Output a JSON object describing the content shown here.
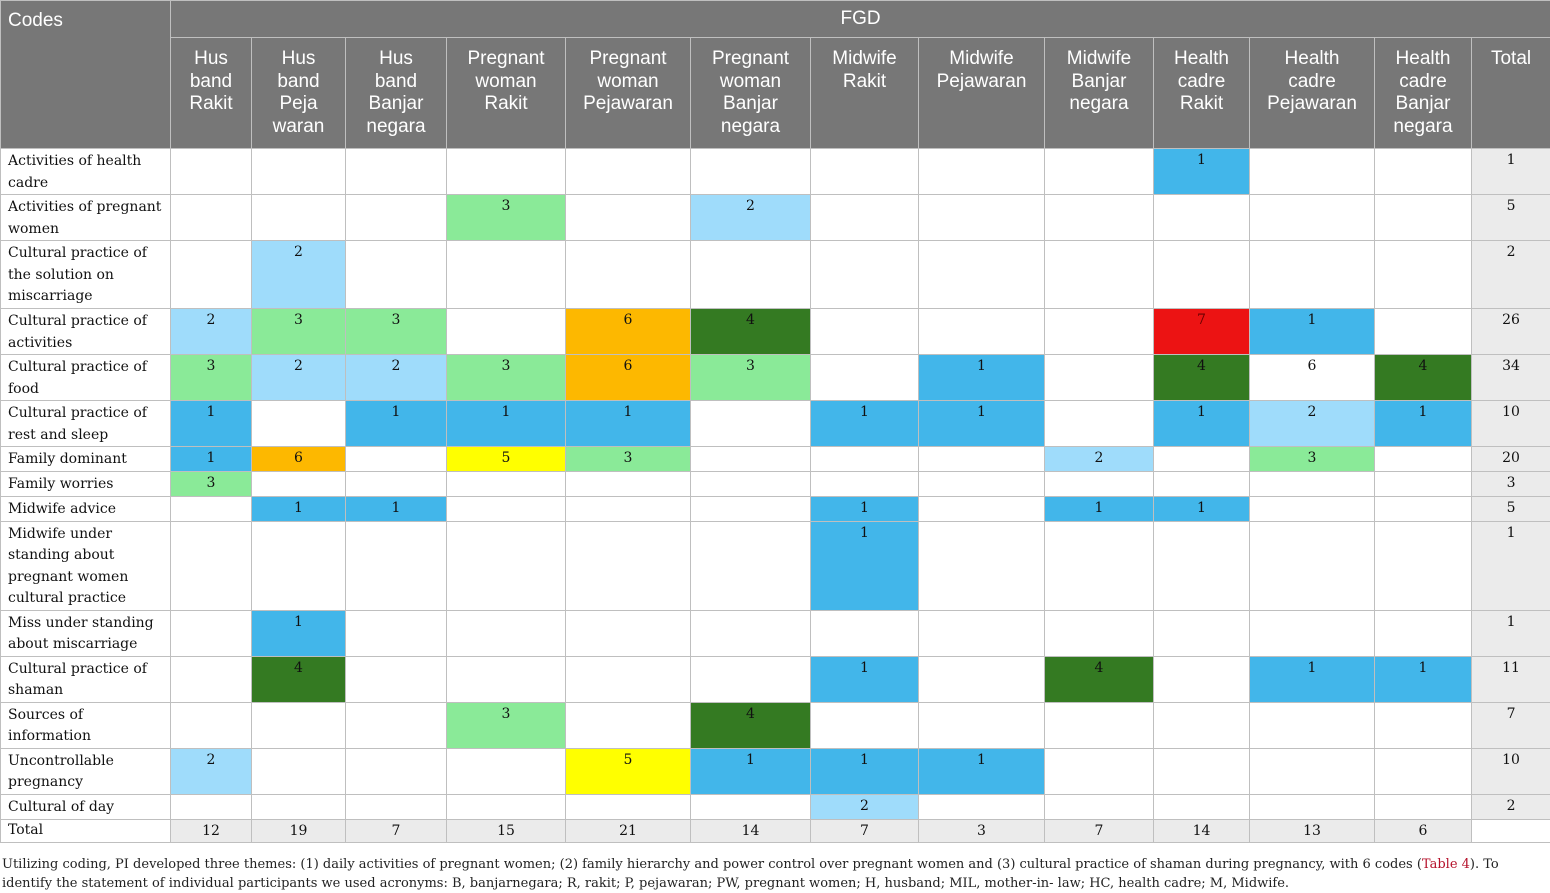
{
  "table": {
    "codes_header": "Codes",
    "group_header": "FGD",
    "columns": [
      "Hus\nband\nRakit",
      "Hus\nband\nPeja\nwaran",
      "Hus\nband\nBanjar\nnegara",
      "Pregnant\nwoman\nRakit",
      "Pregnant\nwoman\nPejawaran",
      "Pregnant\nwoman\nBanjar\nnegara",
      "Midwife\nRakit",
      "Midwife\nPejawaran",
      "Midwife\nBanjar\nnegara",
      "Health\ncadre\nRakit",
      "Health\ncadre\nPejawaran",
      "Health\ncadre\nBanjar\nnegara",
      "Total"
    ],
    "color_legend": {
      "lb": "#9fdcfb",
      "b": "#42b6ea",
      "g": "#8aea98",
      "o": "#fdb800",
      "dg": "#347a22",
      "r": "#ec1313",
      "y": "#ffff00"
    },
    "rows": [
      {
        "code": "Activities of health cadre",
        "cells": [
          "",
          "",
          "",
          "",
          "",
          "",
          "",
          "",
          "",
          "1",
          "",
          ""
        ],
        "colors": [
          "",
          "",
          "",
          "",
          "",
          "",
          "",
          "",
          "",
          "b",
          "",
          ""
        ],
        "total": "1"
      },
      {
        "code": "Activities of pregnant women",
        "cells": [
          "",
          "",
          "",
          "3",
          "",
          "2",
          "",
          "",
          "",
          "",
          "",
          ""
        ],
        "colors": [
          "",
          "",
          "",
          "g",
          "",
          "lb",
          "",
          "",
          "",
          "",
          "",
          ""
        ],
        "total": "5"
      },
      {
        "code": "Cultural practice of the solution on miscarriage",
        "cells": [
          "",
          "2",
          "",
          "",
          "",
          "",
          "",
          "",
          "",
          "",
          "",
          ""
        ],
        "colors": [
          "",
          "lb",
          "",
          "",
          "",
          "",
          "",
          "",
          "",
          "",
          "",
          ""
        ],
        "total": "2"
      },
      {
        "code": "Cultural practice of activities",
        "cells": [
          "2",
          "3",
          "3",
          "",
          "6",
          "4",
          "",
          "",
          "",
          "7",
          "1",
          ""
        ],
        "colors": [
          "lb",
          "g",
          "g",
          "",
          "o",
          "dg",
          "",
          "",
          "",
          "r",
          "b",
          ""
        ],
        "total": "26"
      },
      {
        "code": "Cultural practice of food",
        "cells": [
          "3",
          "2",
          "2",
          "3",
          "6",
          "3",
          "",
          "1",
          "",
          "4",
          "6",
          "4"
        ],
        "colors": [
          "g",
          "lb",
          "lb",
          "g",
          "o",
          "g",
          "",
          "b",
          "",
          "dg",
          "",
          "dg"
        ],
        "total": "34"
      },
      {
        "code": "Cultural practice of rest and sleep",
        "cells": [
          "1",
          "",
          "1",
          "1",
          "1",
          "",
          "1",
          "1",
          "",
          "1",
          "2",
          "1"
        ],
        "colors": [
          "b",
          "",
          "b",
          "b",
          "b",
          "",
          "b",
          "b",
          "",
          "b",
          "lb",
          "b"
        ],
        "total": "10"
      },
      {
        "code": "Family dominant",
        "cells": [
          "1",
          "6",
          "",
          "5",
          "3",
          "",
          "",
          "",
          "2",
          "",
          "3",
          ""
        ],
        "colors": [
          "b",
          "o",
          "",
          "y",
          "g",
          "",
          "",
          "",
          "lb",
          "",
          "g",
          ""
        ],
        "total": "20"
      },
      {
        "code": "Family worries",
        "cells": [
          "3",
          "",
          "",
          "",
          "",
          "",
          "",
          "",
          "",
          "",
          "",
          ""
        ],
        "colors": [
          "g",
          "",
          "",
          "",
          "",
          "",
          "",
          "",
          "",
          "",
          "",
          ""
        ],
        "total": "3"
      },
      {
        "code": "Midwife advice",
        "cells": [
          "",
          "1",
          "1",
          "",
          "",
          "",
          "1",
          "",
          "1",
          "1",
          "",
          ""
        ],
        "colors": [
          "",
          "b",
          "b",
          "",
          "",
          "",
          "b",
          "",
          "b",
          "b",
          "",
          ""
        ],
        "total": "5"
      },
      {
        "code": "Midwife under standing about pregnant women cultural practice",
        "cells": [
          "",
          "",
          "",
          "",
          "",
          "",
          "1",
          "",
          "",
          "",
          "",
          ""
        ],
        "colors": [
          "",
          "",
          "",
          "",
          "",
          "",
          "b",
          "",
          "",
          "",
          "",
          ""
        ],
        "total": "1"
      },
      {
        "code": "Miss under standing about miscarriage",
        "cells": [
          "",
          "1",
          "",
          "",
          "",
          "",
          "",
          "",
          "",
          "",
          "",
          ""
        ],
        "colors": [
          "",
          "b",
          "",
          "",
          "",
          "",
          "",
          "",
          "",
          "",
          "",
          ""
        ],
        "total": "1"
      },
      {
        "code": "Cultural practice of shaman",
        "cells": [
          "",
          "4",
          "",
          "",
          "",
          "",
          "1",
          "",
          "4",
          "",
          "1",
          "1"
        ],
        "colors": [
          "",
          "dg",
          "",
          "",
          "",
          "",
          "b",
          "",
          "dg",
          "",
          "b",
          "b"
        ],
        "total": "11"
      },
      {
        "code": "Sources of information",
        "cells": [
          "",
          "",
          "",
          "3",
          "",
          "4",
          "",
          "",
          "",
          "",
          "",
          ""
        ],
        "colors": [
          "",
          "",
          "",
          "g",
          "",
          "dg",
          "",
          "",
          "",
          "",
          "",
          ""
        ],
        "total": "7"
      },
      {
        "code": "Uncontrollable pregnancy",
        "cells": [
          "2",
          "",
          "",
          "",
          "5",
          "1",
          "1",
          "1",
          "",
          "",
          "",
          ""
        ],
        "colors": [
          "lb",
          "",
          "",
          "",
          "y",
          "b",
          "b",
          "b",
          "",
          "",
          "",
          ""
        ],
        "total": "10"
      },
      {
        "code": "Cultural of day",
        "cells": [
          "",
          "",
          "",
          "",
          "",
          "",
          "2",
          "",
          "",
          "",
          "",
          ""
        ],
        "colors": [
          "",
          "",
          "",
          "",
          "",
          "",
          "lb",
          "",
          "",
          "",
          "",
          ""
        ],
        "total": "2"
      }
    ],
    "total_row": {
      "label": "Total",
      "cells": [
        "12",
        "19",
        "7",
        "15",
        "21",
        "14",
        "7",
        "3",
        "7",
        "14",
        "13",
        "6"
      ],
      "total": ""
    }
  },
  "footnote": {
    "text_before": "Utilizing coding, PI developed three themes: (1) daily activities of pregnant women; (2) family hierarchy and power control over pregnant women and (3) cultural practice of shaman during pregnancy, with 6 codes (",
    "link": "Table 4",
    "text_after": "). To identify the statement of individual participants we used acronyms: B, banjarnegara; R, rakit; P, pejawaran; PW, pregnant women; H, husband; MIL, mother-in- law; HC, health cadre; M, Midwife."
  }
}
